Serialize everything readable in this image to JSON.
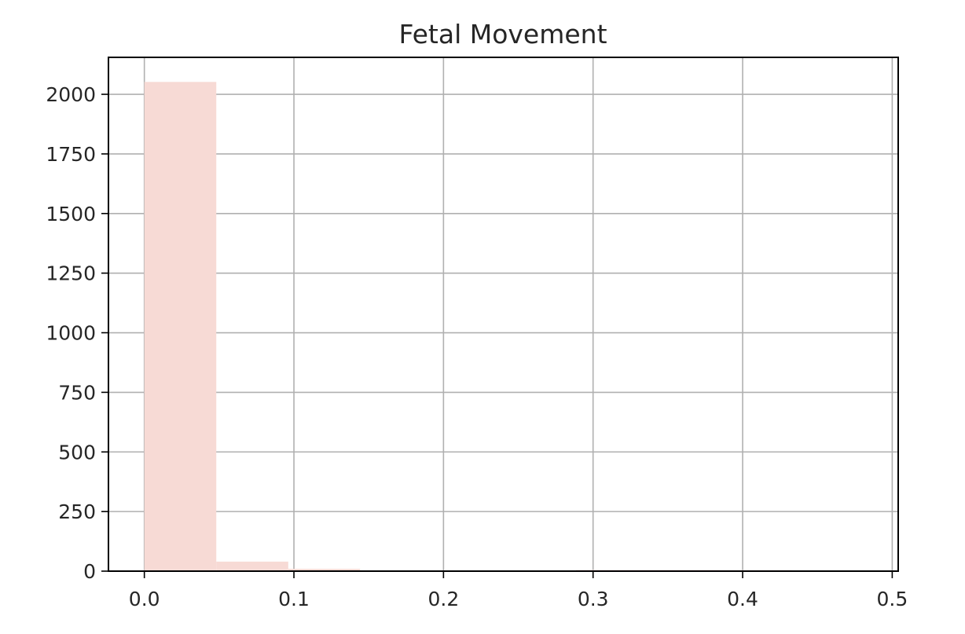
{
  "chart_data": {
    "type": "bar",
    "title": "Fetal Movement",
    "xlabel": "",
    "ylabel": "",
    "xlim": [
      -0.024,
      0.504
    ],
    "ylim": [
      0,
      2155
    ],
    "x_ticks": [
      0.0,
      0.1,
      0.2,
      0.3,
      0.4,
      0.5
    ],
    "x_tick_labels": [
      "0.0",
      "0.1",
      "0.2",
      "0.3",
      "0.4",
      "0.5"
    ],
    "y_ticks": [
      0,
      250,
      500,
      750,
      1000,
      1250,
      1500,
      1750,
      2000
    ],
    "y_tick_labels": [
      "0",
      "250",
      "500",
      "750",
      "1000",
      "1250",
      "1500",
      "1750",
      "2000"
    ],
    "grid": true,
    "bar_color": "#f7dad5",
    "bins": [
      {
        "x0": 0.0,
        "x1": 0.0481,
        "count": 2052
      },
      {
        "x0": 0.0481,
        "x1": 0.0962,
        "count": 40
      },
      {
        "x0": 0.0962,
        "x1": 0.1443,
        "count": 10
      },
      {
        "x0": 0.1443,
        "x1": 0.1924,
        "count": 3
      },
      {
        "x0": 0.1924,
        "x1": 0.2405,
        "count": 3
      },
      {
        "x0": 0.2405,
        "x1": 0.2886,
        "count": 1
      },
      {
        "x0": 0.2886,
        "x1": 0.3367,
        "count": 5
      },
      {
        "x0": 0.3367,
        "x1": 0.3848,
        "count": 5
      },
      {
        "x0": 0.3848,
        "x1": 0.4329,
        "count": 4
      },
      {
        "x0": 0.4329,
        "x1": 0.481,
        "count": 3
      }
    ]
  }
}
